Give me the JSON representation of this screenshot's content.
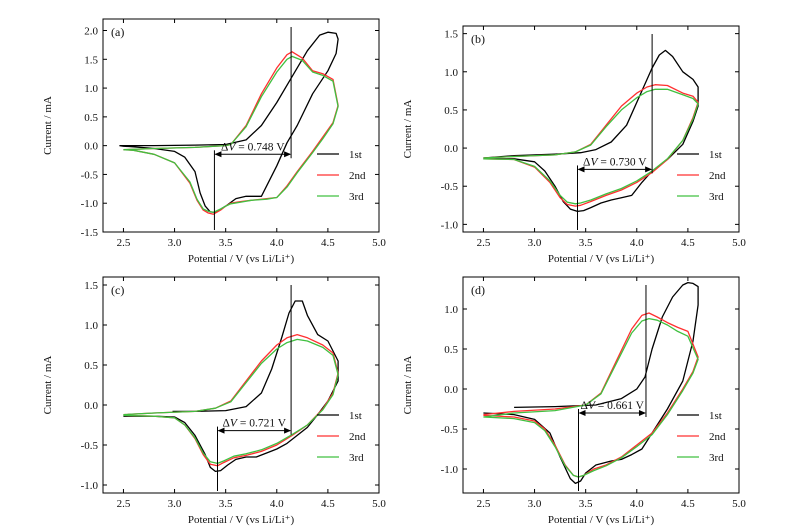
{
  "chart_data": [
    {
      "type": "line",
      "panel_label": "(a)",
      "xlabel": "Potential / V (vs Li/Li⁺)",
      "ylabel": "Current / mA",
      "xlim": [
        2.3,
        5.0
      ],
      "ylim": [
        -1.5,
        2.2
      ],
      "xticks": [
        2.5,
        3.0,
        3.5,
        4.0,
        4.5,
        5.0
      ],
      "yticks": [
        -1.5,
        -1.0,
        -0.5,
        0.0,
        0.5,
        1.0,
        1.5,
        2.0
      ],
      "annotation": {
        "text_prefix": "Δ",
        "text_italic": "V",
        "text_suffix": " = 0.748 V",
        "x_ox": 4.14,
        "x_red": 3.39,
        "y_arrow": -0.15
      },
      "legend": [
        "1st",
        "2nd",
        "3rd"
      ],
      "series": [
        {
          "name": "1st",
          "color": "#000000",
          "x": [
            2.46,
            2.8,
            3.2,
            3.5,
            3.7,
            3.85,
            4.0,
            4.15,
            4.3,
            4.42,
            4.5,
            4.58,
            4.6,
            4.58,
            4.5,
            4.35,
            4.2,
            4.1,
            4.0,
            3.85,
            3.7,
            3.6,
            3.5,
            3.4,
            3.35,
            3.3,
            3.25,
            3.2,
            3.1,
            3.0,
            2.8,
            2.6,
            2.5,
            2.46
          ],
          "y": [
            0.0,
            0.0,
            0.01,
            0.02,
            0.1,
            0.35,
            0.75,
            1.2,
            1.65,
            1.92,
            1.97,
            1.95,
            1.85,
            1.6,
            1.3,
            0.9,
            0.35,
            0.05,
            -0.35,
            -0.88,
            -0.88,
            -0.92,
            -1.05,
            -1.16,
            -1.15,
            -1.05,
            -0.82,
            -0.45,
            -0.2,
            -0.1,
            -0.05,
            -0.02,
            -0.01,
            0.0
          ]
        },
        {
          "name": "2nd",
          "color": "#ff3030",
          "x": [
            2.5,
            2.8,
            3.2,
            3.5,
            3.55,
            3.7,
            3.85,
            4.0,
            4.1,
            4.15,
            4.25,
            4.35,
            4.45,
            4.55,
            4.6,
            4.55,
            4.45,
            4.35,
            4.2,
            4.1,
            4.0,
            3.9,
            3.75,
            3.65,
            3.55,
            3.5,
            3.45,
            3.38,
            3.33,
            3.28,
            3.22,
            3.15,
            3.0,
            2.8,
            2.6,
            2.5
          ],
          "y": [
            -0.07,
            -0.05,
            -0.03,
            0.0,
            0.02,
            0.35,
            0.9,
            1.35,
            1.58,
            1.63,
            1.52,
            1.3,
            1.25,
            1.15,
            0.7,
            0.4,
            0.15,
            -0.1,
            -0.45,
            -0.7,
            -0.9,
            -0.92,
            -0.95,
            -0.97,
            -1.0,
            -1.05,
            -1.12,
            -1.19,
            -1.17,
            -1.12,
            -0.95,
            -0.65,
            -0.3,
            -0.15,
            -0.08,
            -0.07
          ]
        },
        {
          "name": "3rd",
          "color": "#40c040",
          "x": [
            2.5,
            2.8,
            3.2,
            3.5,
            3.55,
            3.7,
            3.85,
            4.0,
            4.1,
            4.15,
            4.25,
            4.35,
            4.45,
            4.55,
            4.6,
            4.55,
            4.45,
            4.35,
            4.2,
            4.1,
            4.0,
            3.9,
            3.75,
            3.65,
            3.55,
            3.5,
            3.45,
            3.38,
            3.33,
            3.28,
            3.22,
            3.15,
            3.0,
            2.8,
            2.6,
            2.5
          ],
          "y": [
            -0.07,
            -0.05,
            -0.03,
            0.0,
            0.02,
            0.33,
            0.85,
            1.28,
            1.5,
            1.55,
            1.48,
            1.28,
            1.22,
            1.12,
            0.68,
            0.38,
            0.12,
            -0.12,
            -0.47,
            -0.72,
            -0.9,
            -0.93,
            -0.95,
            -0.98,
            -1.01,
            -1.05,
            -1.1,
            -1.16,
            -1.14,
            -1.1,
            -0.93,
            -0.63,
            -0.3,
            -0.15,
            -0.08,
            -0.07
          ]
        }
      ]
    },
    {
      "type": "line",
      "panel_label": "(b)",
      "xlabel": "Potential / V (vs Li/Li⁺)",
      "ylabel": "Current / mA",
      "xlim": [
        2.3,
        5.0
      ],
      "ylim": [
        -1.1,
        1.6
      ],
      "xticks": [
        2.5,
        3.0,
        3.5,
        4.0,
        4.5,
        5.0
      ],
      "yticks": [
        -1.0,
        -0.5,
        0.0,
        0.5,
        1.0,
        1.5
      ],
      "annotation": {
        "text_prefix": "Δ",
        "text_italic": "V",
        "text_suffix": " = 0.730 V",
        "x_ox": 4.15,
        "x_red": 3.42,
        "y_arrow": -0.28
      },
      "legend": [
        "1st",
        "2nd",
        "3rd"
      ],
      "series": [
        {
          "name": "1st",
          "color": "#000000",
          "x": [
            2.5,
            2.8,
            3.2,
            3.45,
            3.6,
            3.75,
            3.9,
            4.05,
            4.15,
            4.22,
            4.28,
            4.35,
            4.45,
            4.55,
            4.6,
            4.6,
            4.55,
            4.45,
            4.3,
            4.15,
            4.05,
            3.95,
            3.85,
            3.75,
            3.65,
            3.55,
            3.48,
            3.42,
            3.35,
            3.28,
            3.2,
            3.1,
            3.0,
            2.8,
            2.5
          ],
          "y": [
            -0.13,
            -0.1,
            -0.08,
            -0.06,
            -0.02,
            0.08,
            0.3,
            0.75,
            1.05,
            1.22,
            1.28,
            1.2,
            1.0,
            0.9,
            0.8,
            0.55,
            0.35,
            0.05,
            -0.15,
            -0.3,
            -0.45,
            -0.62,
            -0.65,
            -0.68,
            -0.72,
            -0.78,
            -0.82,
            -0.83,
            -0.8,
            -0.7,
            -0.5,
            -0.3,
            -0.18,
            -0.14,
            -0.14
          ]
        },
        {
          "name": "2nd",
          "color": "#ff3030",
          "x": [
            2.5,
            2.8,
            3.2,
            3.4,
            3.55,
            3.7,
            3.85,
            4.0,
            4.1,
            4.18,
            4.3,
            4.45,
            4.55,
            4.6,
            4.55,
            4.45,
            4.3,
            4.15,
            4.0,
            3.85,
            3.7,
            3.55,
            3.45,
            3.4,
            3.32,
            3.25,
            3.15,
            3.0,
            2.8,
            2.5
          ],
          "y": [
            -0.13,
            -0.11,
            -0.09,
            -0.05,
            0.05,
            0.3,
            0.55,
            0.72,
            0.8,
            0.83,
            0.82,
            0.72,
            0.68,
            0.6,
            0.4,
            0.1,
            -0.15,
            -0.32,
            -0.45,
            -0.55,
            -0.62,
            -0.7,
            -0.75,
            -0.76,
            -0.74,
            -0.65,
            -0.45,
            -0.25,
            -0.15,
            -0.14
          ]
        },
        {
          "name": "3rd",
          "color": "#40c040",
          "x": [
            2.5,
            2.8,
            3.2,
            3.4,
            3.55,
            3.7,
            3.85,
            4.0,
            4.1,
            4.18,
            4.3,
            4.45,
            4.55,
            4.6,
            4.55,
            4.45,
            4.3,
            4.15,
            4.0,
            3.85,
            3.7,
            3.55,
            3.45,
            3.4,
            3.32,
            3.25,
            3.15,
            3.0,
            2.8,
            2.5
          ],
          "y": [
            -0.13,
            -0.11,
            -0.09,
            -0.05,
            0.04,
            0.28,
            0.5,
            0.66,
            0.74,
            0.77,
            0.77,
            0.7,
            0.65,
            0.58,
            0.38,
            0.1,
            -0.14,
            -0.3,
            -0.43,
            -0.53,
            -0.6,
            -0.68,
            -0.72,
            -0.73,
            -0.71,
            -0.62,
            -0.43,
            -0.24,
            -0.15,
            -0.14
          ]
        }
      ]
    },
    {
      "type": "line",
      "panel_label": "(c)",
      "xlabel": "Potential / V (vs Li/Li⁺)",
      "ylabel": "Current / mA",
      "xlim": [
        2.3,
        5.0
      ],
      "ylim": [
        -1.1,
        1.6
      ],
      "xticks": [
        2.5,
        3.0,
        3.5,
        4.0,
        4.5,
        5.0
      ],
      "yticks": [
        -1.0,
        -0.5,
        0.0,
        0.5,
        1.0,
        1.5
      ],
      "annotation": {
        "text_prefix": "Δ",
        "text_italic": "V",
        "text_suffix": " = 0.721 V",
        "x_ox": 4.14,
        "x_red": 3.42,
        "y_arrow": -0.32
      },
      "legend": [
        "1st",
        "2nd",
        "3rd"
      ],
      "series": [
        {
          "name": "1st",
          "color": "#000000",
          "x": [
            2.98,
            3.2,
            3.5,
            3.7,
            3.85,
            3.95,
            4.05,
            4.12,
            4.18,
            4.25,
            4.3,
            4.4,
            4.5,
            4.6,
            4.6,
            4.5,
            4.4,
            4.3,
            4.2,
            4.1,
            4.0,
            3.9,
            3.8,
            3.7,
            3.6,
            3.52,
            3.45,
            3.4,
            3.35,
            3.3,
            3.2,
            3.1,
            3.0,
            2.8,
            2.5
          ],
          "y": [
            -0.08,
            -0.08,
            -0.07,
            -0.02,
            0.15,
            0.45,
            0.85,
            1.15,
            1.3,
            1.3,
            1.12,
            0.88,
            0.8,
            0.55,
            0.3,
            0.05,
            -0.12,
            -0.28,
            -0.38,
            -0.48,
            -0.55,
            -0.6,
            -0.65,
            -0.65,
            -0.68,
            -0.75,
            -0.82,
            -0.83,
            -0.78,
            -0.62,
            -0.38,
            -0.22,
            -0.15,
            -0.14,
            -0.14
          ]
        },
        {
          "name": "2nd",
          "color": "#ff3030",
          "x": [
            2.5,
            2.8,
            3.2,
            3.4,
            3.55,
            3.7,
            3.85,
            4.0,
            4.1,
            4.2,
            4.3,
            4.45,
            4.55,
            4.6,
            4.55,
            4.45,
            4.3,
            4.15,
            4.0,
            3.85,
            3.7,
            3.58,
            3.48,
            3.42,
            3.35,
            3.28,
            3.2,
            3.1,
            3.0,
            2.8,
            2.5
          ],
          "y": [
            -0.12,
            -0.1,
            -0.08,
            -0.04,
            0.05,
            0.3,
            0.55,
            0.75,
            0.84,
            0.88,
            0.84,
            0.75,
            0.65,
            0.4,
            0.15,
            -0.05,
            -0.25,
            -0.38,
            -0.5,
            -0.58,
            -0.63,
            -0.66,
            -0.72,
            -0.76,
            -0.74,
            -0.62,
            -0.42,
            -0.25,
            -0.16,
            -0.14,
            -0.13
          ]
        },
        {
          "name": "3rd",
          "color": "#40c040",
          "x": [
            2.5,
            2.8,
            3.2,
            3.4,
            3.55,
            3.7,
            3.85,
            4.0,
            4.1,
            4.2,
            4.3,
            4.45,
            4.55,
            4.6,
            4.55,
            4.45,
            4.3,
            4.15,
            4.0,
            3.85,
            3.7,
            3.58,
            3.48,
            3.42,
            3.35,
            3.28,
            3.2,
            3.1,
            3.0,
            2.8,
            2.5
          ],
          "y": [
            -0.12,
            -0.1,
            -0.08,
            -0.04,
            0.04,
            0.28,
            0.52,
            0.7,
            0.78,
            0.82,
            0.8,
            0.72,
            0.62,
            0.38,
            0.13,
            -0.06,
            -0.25,
            -0.37,
            -0.48,
            -0.56,
            -0.61,
            -0.64,
            -0.7,
            -0.73,
            -0.71,
            -0.6,
            -0.41,
            -0.25,
            -0.16,
            -0.14,
            -0.13
          ]
        }
      ]
    },
    {
      "type": "line",
      "panel_label": "(d)",
      "xlabel": "Potential / V (vs Li/Li⁺)",
      "ylabel": "Current / mA",
      "xlim": [
        2.3,
        5.0
      ],
      "ylim": [
        -1.3,
        1.4
      ],
      "xticks": [
        2.5,
        3.0,
        3.5,
        4.0,
        4.5,
        5.0
      ],
      "yticks": [
        -1.0,
        -0.5,
        0.0,
        0.5,
        1.0
      ],
      "annotation": {
        "text_prefix": "Δ",
        "text_italic": "V",
        "text_suffix": " = 0.661 V",
        "x_ox": 4.09,
        "x_red": 3.43,
        "y_arrow": -0.3
      },
      "legend": [
        "1st",
        "2nd",
        "3rd"
      ],
      "series": [
        {
          "name": "1st",
          "color": "#000000",
          "x": [
            2.8,
            3.2,
            3.6,
            3.85,
            4.0,
            4.08,
            4.15,
            4.25,
            4.35,
            4.45,
            4.5,
            4.55,
            4.6,
            4.6,
            4.55,
            4.45,
            4.3,
            4.15,
            4.05,
            3.95,
            3.85,
            3.75,
            3.6,
            3.5,
            3.45,
            3.4,
            3.35,
            3.25,
            3.15,
            3.0,
            2.8,
            2.5
          ],
          "y": [
            -0.23,
            -0.22,
            -0.2,
            -0.12,
            0.0,
            0.15,
            0.5,
            0.9,
            1.15,
            1.3,
            1.33,
            1.32,
            1.28,
            1.05,
            0.6,
            0.1,
            -0.25,
            -0.55,
            -0.75,
            -0.82,
            -0.88,
            -0.9,
            -0.95,
            -1.05,
            -1.15,
            -1.18,
            -1.12,
            -0.85,
            -0.55,
            -0.38,
            -0.32,
            -0.3
          ]
        },
        {
          "name": "2nd",
          "color": "#ff3030",
          "x": [
            2.5,
            2.8,
            3.2,
            3.5,
            3.65,
            3.8,
            3.95,
            4.05,
            4.12,
            4.2,
            4.3,
            4.4,
            4.5,
            4.6,
            4.55,
            4.45,
            4.3,
            4.15,
            4.0,
            3.85,
            3.7,
            3.58,
            3.48,
            3.43,
            3.38,
            3.3,
            3.2,
            3.1,
            3.0,
            2.8,
            2.5
          ],
          "y": [
            -0.32,
            -0.28,
            -0.25,
            -0.2,
            -0.05,
            0.35,
            0.75,
            0.92,
            0.95,
            0.9,
            0.83,
            0.77,
            0.72,
            0.4,
            0.22,
            0.0,
            -0.3,
            -0.55,
            -0.7,
            -0.85,
            -0.95,
            -1.0,
            -1.08,
            -1.1,
            -1.08,
            -0.95,
            -0.7,
            -0.5,
            -0.4,
            -0.35,
            -0.33
          ]
        },
        {
          "name": "3rd",
          "color": "#40c040",
          "x": [
            2.5,
            2.8,
            3.2,
            3.5,
            3.65,
            3.8,
            3.95,
            4.05,
            4.12,
            4.2,
            4.3,
            4.4,
            4.5,
            4.6,
            4.55,
            4.45,
            4.3,
            4.15,
            4.0,
            3.85,
            3.7,
            3.58,
            3.48,
            3.43,
            3.38,
            3.3,
            3.2,
            3.1,
            3.0,
            2.8,
            2.5
          ],
          "y": [
            -0.35,
            -0.3,
            -0.27,
            -0.2,
            -0.06,
            0.32,
            0.7,
            0.85,
            0.88,
            0.86,
            0.8,
            0.72,
            0.66,
            0.37,
            0.2,
            -0.02,
            -0.32,
            -0.57,
            -0.72,
            -0.86,
            -0.96,
            -1.02,
            -1.08,
            -1.1,
            -1.08,
            -0.96,
            -0.72,
            -0.52,
            -0.42,
            -0.37,
            -0.35
          ]
        }
      ]
    }
  ]
}
